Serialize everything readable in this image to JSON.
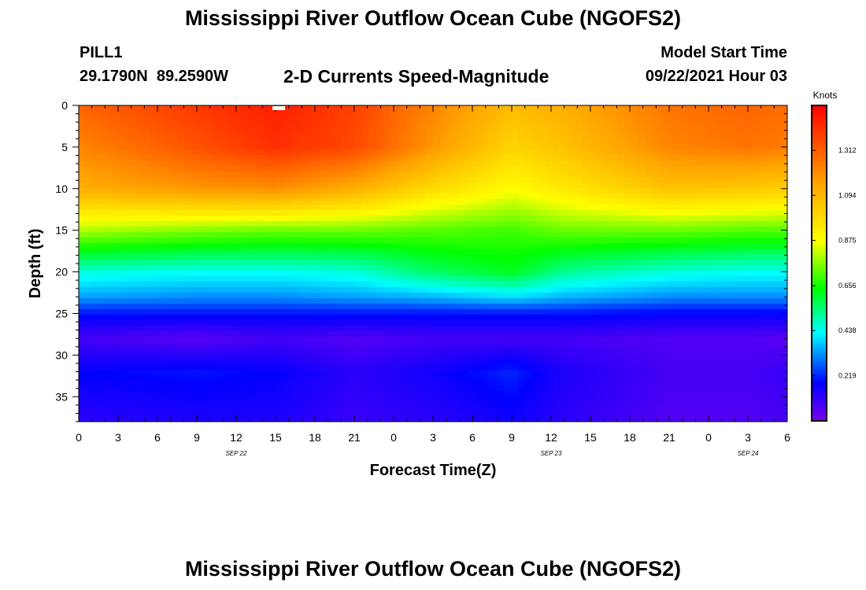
{
  "header": {
    "title": "Mississippi River Outflow Ocean Cube (NGOFS2)",
    "station_id": "PILL1",
    "coordinates": "29.1790N  89.2590W",
    "subtitle": "2-D Currents Speed-Magnitude",
    "model_start_label": "Model Start Time",
    "model_start_value": "09/22/2021 Hour 03"
  },
  "footer": {
    "title": "Mississippi River Outflow Ocean Cube (NGOFS2)"
  },
  "chart_data": {
    "type": "heatmap",
    "title": "2-D Currents Speed-Magnitude",
    "xlabel": "Forecast Time(Z)",
    "ylabel": "Depth (ft)",
    "x_range_hours": [
      0,
      54
    ],
    "ylim": [
      0,
      38
    ],
    "y_inverted": true,
    "x_tick_labels": [
      "0",
      "3",
      "6",
      "9",
      "12",
      "15",
      "18",
      "21",
      "0",
      "3",
      "6",
      "9",
      "12",
      "15",
      "18",
      "21",
      "0",
      "3",
      "6"
    ],
    "y_ticks": [
      0,
      5,
      10,
      15,
      20,
      25,
      30,
      35
    ],
    "date_labels": [
      {
        "label": "SEP 22",
        "hour": 12
      },
      {
        "label": "SEP 23",
        "hour": 36
      },
      {
        "label": "SEP 24",
        "hour": 51
      }
    ],
    "colorbar": {
      "label": "Knots",
      "range": [
        0,
        1.53
      ],
      "ticks": [
        "0.219",
        "0.438",
        "0.656",
        "0.875",
        "1.094",
        "1.312"
      ],
      "colors": [
        "#7a00ee",
        "#0000ff",
        "#00ffff",
        "#00ff00",
        "#ffff00",
        "#ffa500",
        "#ff0000"
      ]
    },
    "depths_ft": [
      0,
      5,
      10,
      15,
      20,
      23,
      25,
      28,
      32,
      38
    ],
    "times_hours": [
      0,
      9,
      15,
      21,
      27,
      33,
      37,
      45,
      51,
      54
    ],
    "speed_knots": [
      [
        1.3,
        1.4,
        1.46,
        1.38,
        1.22,
        1.08,
        1.12,
        1.26,
        1.3,
        1.28
      ],
      [
        1.22,
        1.34,
        1.42,
        1.36,
        1.18,
        1.0,
        1.06,
        1.22,
        1.26,
        1.24
      ],
      [
        1.12,
        1.18,
        1.2,
        1.12,
        0.98,
        0.88,
        0.94,
        1.06,
        1.04,
        1.02
      ],
      [
        0.8,
        0.76,
        0.74,
        0.74,
        0.72,
        0.7,
        0.74,
        0.74,
        0.72,
        0.72
      ],
      [
        0.46,
        0.44,
        0.44,
        0.46,
        0.56,
        0.62,
        0.52,
        0.46,
        0.44,
        0.44
      ],
      [
        0.34,
        0.32,
        0.32,
        0.34,
        0.36,
        0.4,
        0.36,
        0.32,
        0.32,
        0.32
      ],
      [
        0.2,
        0.2,
        0.2,
        0.2,
        0.2,
        0.2,
        0.2,
        0.18,
        0.18,
        0.18
      ],
      [
        0.08,
        0.05,
        0.08,
        0.06,
        0.08,
        0.08,
        0.08,
        0.06,
        0.06,
        0.05
      ],
      [
        0.18,
        0.2,
        0.18,
        0.12,
        0.16,
        0.22,
        0.14,
        0.08,
        0.08,
        0.1
      ],
      [
        0.12,
        0.14,
        0.14,
        0.1,
        0.12,
        0.16,
        0.12,
        0.06,
        0.06,
        0.08
      ]
    ]
  }
}
